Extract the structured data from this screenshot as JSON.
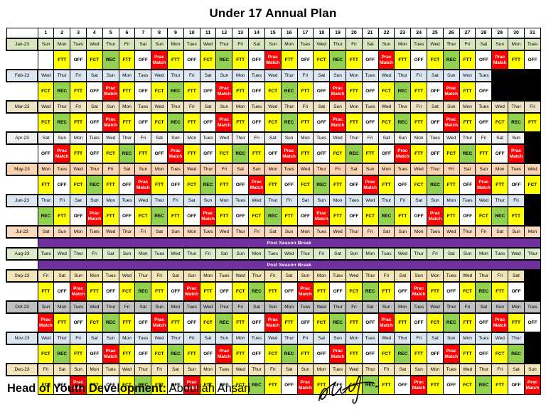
{
  "title": "Under 17 Annual Plan",
  "footer": {
    "label": "Head of Youth Development:",
    "name": " Abdullah Ansari",
    "signature": "handwritten-signature"
  },
  "day_numbers": [
    1,
    2,
    3,
    4,
    5,
    6,
    7,
    8,
    9,
    10,
    11,
    12,
    13,
    14,
    15,
    16,
    17,
    18,
    19,
    20,
    21,
    22,
    23,
    24,
    25,
    26,
    27,
    28,
    29,
    30,
    31
  ],
  "activity_labels": {
    "FTT": "FTT",
    "OFF": "OFF",
    "FCT": "FCT",
    "REC": "REC",
    "PM": "Prac Match"
  },
  "colors": {
    "FTT": "#FFFF00",
    "FCT": "#FFFF00",
    "OFF": "#FFFFFF",
    "REC": "#92D050",
    "PM": "#FF0000",
    "break": "#7030A0",
    "na": "#000000",
    "grid_line": "#000000"
  },
  "break_label": "Post Season Break",
  "months": [
    {
      "label": "Jan-23",
      "color": "#D8E4BC",
      "days": [
        "Sun",
        "Mon",
        "Tues",
        "Wed",
        "Thur",
        "Fri",
        "Sat",
        "Sun",
        "Mon",
        "Tues",
        "Wed",
        "Thur",
        "Fri",
        "Sat",
        "Sun",
        "Mon",
        "Tues",
        "Wed",
        "Thur",
        "Fri",
        "Sat",
        "Sun",
        "Mon",
        "Tues",
        "Wed",
        "Thur",
        "Fri",
        "Sat",
        "Sun",
        "Mon",
        "Tues"
      ],
      "acts": [
        "",
        "FTT",
        "OFF",
        "FCT",
        "REC",
        "FTT",
        "OFF",
        "PM",
        "FTT",
        "OFF",
        "FCT",
        "REC",
        "FTT",
        "OFF",
        "PM",
        "FTT",
        "OFF",
        "FCT",
        "REC",
        "FTT",
        "OFF",
        "PM",
        "FTT",
        "OFF",
        "FCT",
        "REC",
        "FTT",
        "OFF",
        "PM",
        "FTT",
        "OFF"
      ]
    },
    {
      "label": "Feb-23",
      "color": "#DCE6F1",
      "days": [
        "Wed",
        "Thur",
        "Fri",
        "Sat",
        "Sun",
        "Mon",
        "Tues",
        "Wed",
        "Thur",
        "Fri",
        "Sat",
        "Sun",
        "Mon",
        "Tues",
        "Wed",
        "Thur",
        "Fri",
        "Sat",
        "Sun",
        "Mon",
        "Tues",
        "Wed",
        "Thur",
        "Fri",
        "Sat",
        "Sun",
        "Mon",
        "Tues",
        null,
        null,
        null
      ],
      "acts": [
        "FCT",
        "REC",
        "FTT",
        "OFF",
        "PM",
        "FTT",
        "OFF",
        "FCT",
        "REC",
        "FTT",
        "OFF",
        "PM",
        "FTT",
        "OFF",
        "FCT",
        "REC",
        "FTT",
        "OFF",
        "PM",
        "FTT",
        "OFF",
        "FCT",
        "REC",
        "FTT",
        "OFF",
        "PM",
        "FTT",
        "OFF",
        null,
        null,
        null
      ]
    },
    {
      "label": "Mar-23",
      "color": "#EDE2C4",
      "days": [
        "Wed",
        "Thur",
        "Fri",
        "Sat",
        "Sun",
        "Mon",
        "Tues",
        "Wed",
        "Thur",
        "Fri",
        "Sat",
        "Sun",
        "Mon",
        "Tues",
        "Wed",
        "Thur",
        "Fri",
        "Sat",
        "Sun",
        "Mon",
        "Tues",
        "Wed",
        "Thur",
        "Fri",
        "Sat",
        "Sun",
        "Mon",
        "Tues",
        "Wed",
        "Thur",
        "Fri"
      ],
      "acts": [
        "FCT",
        "REC",
        "FTT",
        "OFF",
        "PM",
        "FTT",
        "OFF",
        "FCT",
        "REC",
        "FTT",
        "OFF",
        "PM",
        "FTT",
        "OFF",
        "FCT",
        "REC",
        "FTT",
        "OFF",
        "PM",
        "FTT",
        "OFF",
        "FCT",
        "REC",
        "FTT",
        "OFF",
        "PM",
        "FTT",
        "OFF",
        "FCT",
        "REC",
        "FTT"
      ]
    },
    {
      "label": "Apr-23",
      "color": "#F0F0F0",
      "days": [
        "Sat",
        "Sun",
        "Mon",
        "Tues",
        "Wed",
        "Thur",
        "Fri",
        "Sat",
        "Sun",
        "Mon",
        "Tues",
        "Wed",
        "Thur",
        "Fri",
        "Sat",
        "Sun",
        "Mon",
        "Tues",
        "Wed",
        "Thur",
        "Fri",
        "Sat",
        "Sun",
        "Mon",
        "Tues",
        "Wed",
        "Thur",
        "Fri",
        "Sat",
        "Sun",
        null
      ],
      "acts": [
        "OFF",
        "PM",
        "FTT",
        "OFF",
        "FCT",
        "REC",
        "FTT",
        "OFF",
        "PM",
        "FTT",
        "OFF",
        "FCT",
        "REC",
        "FTT",
        "OFF",
        "PM",
        "FTT",
        "OFF",
        "FCT",
        "REC",
        "FTT",
        "OFF",
        "PM",
        "FTT",
        "OFF",
        "FCT",
        "REC",
        "FTT",
        "OFF",
        "PM",
        null
      ]
    },
    {
      "label": "May-23",
      "color": "#FBD3B0",
      "days": [
        "Mon",
        "Tues",
        "Wed",
        "Thur",
        "Fri",
        "Sat",
        "Sun",
        "Mon",
        "Tues",
        "Wed",
        "Thur",
        "Fri",
        "Sat",
        "Sun",
        "Mon",
        "Tues",
        "Wed",
        "Thur",
        "Fri",
        "Sat",
        "Sun",
        "Mon",
        "Tues",
        "Wed",
        "Thur",
        "Fri",
        "Sat",
        "Sun",
        "Mon",
        "Tues",
        "Wed"
      ],
      "acts": [
        "FTT",
        "OFF",
        "FCT",
        "REC",
        "FTT",
        "OFF",
        "PM",
        "FTT",
        "OFF",
        "FCT",
        "REC",
        "FTT",
        "OFF",
        "PM",
        "FTT",
        "OFF",
        "FCT",
        "REC",
        "FTT",
        "OFF",
        "PM",
        "FTT",
        "OFF",
        "FCT",
        "REC",
        "FTT",
        "OFF",
        "PM",
        "FTT",
        "OFF",
        "FCT"
      ]
    },
    {
      "label": "Jun-23",
      "color": "#DCE6F1",
      "days": [
        "Thur",
        "Fri",
        "Sat",
        "Sun",
        "Mon",
        "Tues",
        "Wed",
        "Thur",
        "Fri",
        "Sat",
        "Sun",
        "Mon",
        "Tues",
        "Wed",
        "Thur",
        "Fri",
        "Sat",
        "Sun",
        "Mon",
        "Tues",
        "Wed",
        "Thur",
        "Fri",
        "Sat",
        "Sun",
        "Mon",
        "Tues",
        "Wed",
        "Thur",
        "Fri",
        null
      ],
      "acts": [
        "REC",
        "FTT",
        "OFF",
        "PM",
        "FTT",
        "OFF",
        "FCT",
        "REC",
        "FTT",
        "OFF",
        "PM",
        "FTT",
        "OFF",
        "FCT",
        "REC",
        "FTT",
        "OFF",
        "PM",
        "FTT",
        "OFF",
        "FCT",
        "REC",
        "FTT",
        "OFF",
        "PM",
        "FTT",
        "OFF",
        "FCT",
        "REC",
        "FTT",
        null
      ]
    },
    {
      "label": "Jul-23",
      "color": "#FCD9BC",
      "days": [
        "Sat",
        "Sun",
        "Mon",
        "Tues",
        "Wed",
        "Thur",
        "Fri",
        "Sat",
        "Sun",
        "Mon",
        "Tues",
        "Wed",
        "Thur",
        "Fri",
        "Sat",
        "Sun",
        "Mon",
        "Tues",
        "Wed",
        "Thur",
        "Fri",
        "Sat",
        "Sun",
        "Mon",
        "Tues",
        "Wed",
        "Thur",
        "Fri",
        "Sat",
        "Sun",
        "Mon"
      ],
      "band": "Post Season Break"
    },
    {
      "label": "Aug-23",
      "color": "#DDEACA",
      "days": [
        "Tues",
        "Wed",
        "Thur",
        "Fri",
        "Sat",
        "Sun",
        "Mon",
        "Tues",
        "Wed",
        "Thur",
        "Fri",
        "Sat",
        "Sun",
        "Mon",
        "Tues",
        "Wed",
        "Thur",
        "Fri",
        "Sat",
        "Sun",
        "Mon",
        "Tues",
        "Wed",
        "Thur",
        "Fri",
        "Sat",
        "Sun",
        "Mon",
        "Tues",
        "Wed",
        "Thur"
      ],
      "band": "Post Season Break"
    },
    {
      "label": "Sep-23",
      "color": "#F3E5B8",
      "days": [
        "Fri",
        "Sat",
        "Sun",
        "Mon",
        "Tues",
        "Wed",
        "Thur",
        "Fri",
        "Sat",
        "Sun",
        "Mon",
        "Tues",
        "Wed",
        "Thur",
        "Fri",
        "Sat",
        "Sun",
        "Mon",
        "Tues",
        "Wed",
        "Thur",
        "Fri",
        "Sat",
        "Sun",
        "Mon",
        "Tues",
        "Wed",
        "Thur",
        "Fri",
        "Sat",
        null
      ],
      "acts": [
        "FTT",
        "OFF",
        "PM",
        "FTT",
        "OFF",
        "FCT",
        "REC",
        "FTT",
        "OFF",
        "PM",
        "FTT",
        "OFF",
        "FCT",
        "REC",
        "FTT",
        "OFF",
        "PM",
        "FTT",
        "OFF",
        "FCT",
        "REC",
        "FTT",
        "OFF",
        "PM",
        "FTT",
        "OFF",
        "FCT",
        "REC",
        "FTT",
        "OFF",
        null
      ]
    },
    {
      "label": "Oct-23",
      "color": "#C0C0C0",
      "days": [
        "Sun",
        "Mon",
        "Tues",
        "Wed",
        "Thur",
        "Fri",
        "Sat",
        "Sun",
        "Mon",
        "Tues",
        "Wed",
        "Thur",
        "Fri",
        "Sat",
        "Sun",
        "Mon",
        "Tues",
        "Wed",
        "Thur",
        "Fri",
        "Sat",
        "Sun",
        "Mon",
        "Tues",
        "Wed",
        "Thur",
        "Fri",
        "Sat",
        "Sun",
        "Mon",
        "Tues"
      ],
      "acts": [
        "PM",
        "FTT",
        "OFF",
        "FCT",
        "REC",
        "FTT",
        "OFF",
        "PM",
        "FTT",
        "OFF",
        "FCT",
        "REC",
        "FTT",
        "OFF",
        "PM",
        "FTT",
        "OFF",
        "FCT",
        "REC",
        "FTT",
        "OFF",
        "PM",
        "FTT",
        "OFF",
        "FCT",
        "REC",
        "FTT",
        "OFF",
        "PM",
        "FTT",
        "OFF"
      ]
    },
    {
      "label": "Nov-23",
      "color": "#DCE6F1",
      "days": [
        "Wed",
        "Thur",
        "Fri",
        "Sat",
        "Sun",
        "Mon",
        "Tues",
        "Wed",
        "Thur",
        "Fri",
        "Sat",
        "Sun",
        "Mon",
        "Tues",
        "Wed",
        "Thur",
        "Fri",
        "Sat",
        "Sun",
        "Mon",
        "Tues",
        "Wed",
        "Thur",
        "Fri",
        "Sat",
        "Sun",
        "Mon",
        "Tues",
        "Wed",
        "Thur",
        null
      ],
      "acts": [
        "FCT",
        "REC",
        "FTT",
        "OFF",
        "PM",
        "FTT",
        "OFF",
        "FCT",
        "REC",
        "FTT",
        "OFF",
        "PM",
        "FTT",
        "OFF",
        "FCT",
        "REC",
        "FTT",
        "OFF",
        "PM",
        "FTT",
        "OFF",
        "FCT",
        "REC",
        "FTT",
        "OFF",
        "PM",
        "FTT",
        "OFF",
        "FCT",
        "REC",
        null
      ]
    },
    {
      "label": "Dec-23",
      "color": "#F3E5B8",
      "days": [
        "Fri",
        "Sat",
        "Sun",
        "Mon",
        "Tues",
        "Wed",
        "Thur",
        "Fri",
        "Sat",
        "Sun",
        "Mon",
        "Tues",
        "Wed",
        "Thur",
        "Fri",
        "Sat",
        "Sun",
        "Mon",
        "Tues",
        "Wed",
        "Thur",
        "Fri",
        "Sat",
        "Sun",
        "Mon",
        "Tues",
        "Wed",
        "Thur",
        "Fri",
        "Sat",
        "Sun"
      ],
      "acts": [
        "FTT",
        "OFF",
        "PM",
        "FTT",
        "OFF",
        "FCT",
        "REC",
        "FTT",
        "OFF",
        "PM",
        "FTT",
        "OFF",
        "FCT",
        "REC",
        "FTT",
        "OFF",
        "PM",
        "FTT",
        "OFF",
        "FCT",
        "REC",
        "FTT",
        "OFF",
        "PM",
        "FTT",
        "OFF",
        "FCT",
        "REC",
        "FTT",
        "OFF",
        "PM"
      ]
    }
  ]
}
